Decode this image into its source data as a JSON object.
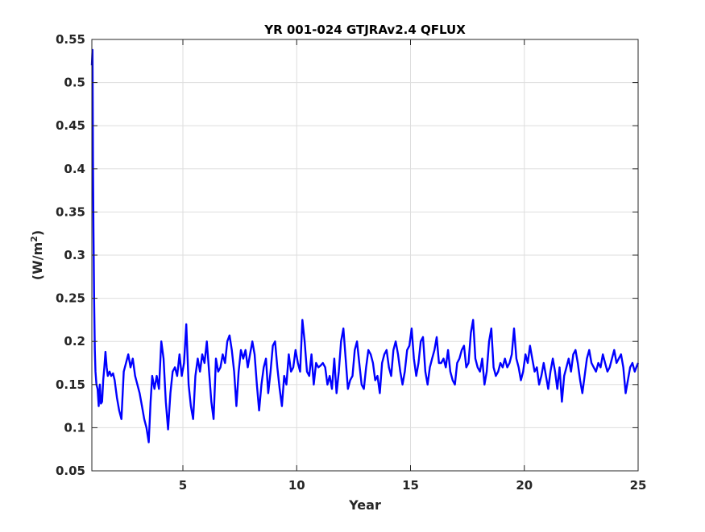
{
  "chart_data": {
    "type": "line",
    "title": "YR 001-024 GTJRAv2.4 QFLUX",
    "xlabel": "Year",
    "ylabel": "(W/m",
    "ylabel_sup": "2",
    "ylabel_close": ")",
    "xlim": [
      1,
      25
    ],
    "ylim": [
      0.05,
      0.55
    ],
    "x_ticks": [
      5,
      10,
      15,
      20,
      25
    ],
    "x_tick_labels": [
      "5",
      "10",
      "15",
      "20",
      "25"
    ],
    "y_ticks": [
      0.05,
      0.1,
      0.15,
      0.2,
      0.25,
      0.3,
      0.35,
      0.4,
      0.45,
      0.5,
      0.55
    ],
    "y_tick_labels": [
      "0.05",
      "0.1",
      "0.15",
      "0.2",
      "0.25",
      "0.3",
      "0.35",
      "0.4",
      "0.45",
      "0.5",
      "0.55"
    ],
    "grid": true,
    "legend": "none",
    "series": [
      {
        "color": "#0000ff",
        "x": [
          1.0,
          1.03,
          1.05,
          1.07,
          1.1,
          1.13,
          1.16,
          1.2,
          1.25,
          1.3,
          1.35,
          1.4,
          1.45,
          1.5,
          1.55,
          1.6,
          1.65,
          1.7,
          1.78,
          1.85,
          1.93,
          2.0,
          2.1,
          2.2,
          2.3,
          2.4,
          2.5,
          2.6,
          2.7,
          2.8,
          2.9,
          3.0,
          3.1,
          3.2,
          3.3,
          3.4,
          3.5,
          3.58,
          3.65,
          3.75,
          3.85,
          3.95,
          4.05,
          4.15,
          4.25,
          4.35,
          4.45,
          4.55,
          4.65,
          4.75,
          4.85,
          4.95,
          5.05,
          5.15,
          5.25,
          5.35,
          5.45,
          5.55,
          5.65,
          5.75,
          5.85,
          5.95,
          6.05,
          6.15,
          6.25,
          6.35,
          6.45,
          6.55,
          6.65,
          6.75,
          6.85,
          6.95,
          7.05,
          7.15,
          7.25,
          7.35,
          7.45,
          7.55,
          7.65,
          7.75,
          7.85,
          7.95,
          8.05,
          8.15,
          8.25,
          8.35,
          8.45,
          8.55,
          8.65,
          8.75,
          8.85,
          8.95,
          9.05,
          9.15,
          9.25,
          9.35,
          9.45,
          9.55,
          9.65,
          9.75,
          9.85,
          9.95,
          10.05,
          10.15,
          10.25,
          10.35,
          10.45,
          10.55,
          10.65,
          10.75,
          10.85,
          10.95,
          11.05,
          11.15,
          11.25,
          11.35,
          11.45,
          11.55,
          11.65,
          11.75,
          11.85,
          11.95,
          12.05,
          12.15,
          12.25,
          12.35,
          12.45,
          12.55,
          12.65,
          12.75,
          12.85,
          12.95,
          13.05,
          13.15,
          13.25,
          13.35,
          13.45,
          13.55,
          13.65,
          13.75,
          13.85,
          13.95,
          14.05,
          14.15,
          14.25,
          14.35,
          14.45,
          14.55,
          14.65,
          14.75,
          14.85,
          14.95,
          15.05,
          15.15,
          15.25,
          15.35,
          15.45,
          15.55,
          15.65,
          15.75,
          15.85,
          15.95,
          16.05,
          16.15,
          16.25,
          16.35,
          16.45,
          16.55,
          16.65,
          16.75,
          16.85,
          16.95,
          17.05,
          17.15,
          17.25,
          17.35,
          17.45,
          17.55,
          17.65,
          17.75,
          17.85,
          17.95,
          18.05,
          18.15,
          18.25,
          18.35,
          18.45,
          18.55,
          18.65,
          18.75,
          18.85,
          18.95,
          19.05,
          19.15,
          19.25,
          19.35,
          19.45,
          19.55,
          19.65,
          19.75,
          19.85,
          19.95,
          20.05,
          20.15,
          20.25,
          20.35,
          20.45,
          20.55,
          20.65,
          20.75,
          20.85,
          20.95,
          21.05,
          21.15,
          21.25,
          21.35,
          21.45,
          21.55,
          21.65,
          21.75,
          21.85,
          21.95,
          22.05,
          22.15,
          22.25,
          22.35,
          22.45,
          22.55,
          22.65,
          22.75,
          22.85,
          22.95,
          23.05,
          23.15,
          23.25,
          23.35,
          23.45,
          23.55,
          23.65,
          23.75,
          23.85,
          23.95,
          24.05,
          24.15,
          24.25,
          24.35,
          24.45,
          24.55,
          24.65,
          24.75,
          24.85,
          24.95,
          25.0
        ],
        "y": [
          0.52,
          0.538,
          0.41,
          0.33,
          0.25,
          0.19,
          0.165,
          0.15,
          0.145,
          0.125,
          0.15,
          0.128,
          0.13,
          0.155,
          0.17,
          0.188,
          0.17,
          0.16,
          0.165,
          0.16,
          0.163,
          0.155,
          0.135,
          0.12,
          0.11,
          0.165,
          0.175,
          0.185,
          0.17,
          0.18,
          0.16,
          0.15,
          0.14,
          0.125,
          0.11,
          0.1,
          0.083,
          0.13,
          0.16,
          0.145,
          0.16,
          0.145,
          0.2,
          0.18,
          0.13,
          0.098,
          0.14,
          0.165,
          0.17,
          0.16,
          0.185,
          0.16,
          0.175,
          0.22,
          0.15,
          0.125,
          0.11,
          0.16,
          0.18,
          0.165,
          0.185,
          0.175,
          0.2,
          0.165,
          0.13,
          0.11,
          0.18,
          0.165,
          0.17,
          0.185,
          0.175,
          0.2,
          0.207,
          0.19,
          0.165,
          0.125,
          0.165,
          0.19,
          0.18,
          0.19,
          0.17,
          0.185,
          0.2,
          0.185,
          0.15,
          0.12,
          0.15,
          0.17,
          0.18,
          0.14,
          0.165,
          0.195,
          0.2,
          0.17,
          0.145,
          0.125,
          0.16,
          0.15,
          0.185,
          0.165,
          0.17,
          0.19,
          0.175,
          0.165,
          0.225,
          0.2,
          0.165,
          0.16,
          0.185,
          0.15,
          0.175,
          0.17,
          0.172,
          0.175,
          0.17,
          0.15,
          0.16,
          0.145,
          0.18,
          0.14,
          0.165,
          0.2,
          0.215,
          0.18,
          0.145,
          0.155,
          0.16,
          0.19,
          0.2,
          0.175,
          0.15,
          0.145,
          0.17,
          0.19,
          0.185,
          0.175,
          0.155,
          0.16,
          0.14,
          0.175,
          0.185,
          0.19,
          0.17,
          0.16,
          0.19,
          0.2,
          0.185,
          0.165,
          0.15,
          0.165,
          0.19,
          0.195,
          0.215,
          0.18,
          0.16,
          0.175,
          0.2,
          0.205,
          0.165,
          0.15,
          0.17,
          0.18,
          0.19,
          0.205,
          0.175,
          0.175,
          0.18,
          0.17,
          0.19,
          0.165,
          0.155,
          0.15,
          0.175,
          0.18,
          0.19,
          0.195,
          0.17,
          0.175,
          0.21,
          0.225,
          0.18,
          0.17,
          0.165,
          0.18,
          0.15,
          0.165,
          0.2,
          0.215,
          0.17,
          0.16,
          0.165,
          0.175,
          0.17,
          0.18,
          0.17,
          0.175,
          0.185,
          0.215,
          0.18,
          0.17,
          0.155,
          0.165,
          0.185,
          0.175,
          0.195,
          0.18,
          0.165,
          0.17,
          0.15,
          0.16,
          0.175,
          0.16,
          0.145,
          0.165,
          0.18,
          0.165,
          0.145,
          0.17,
          0.13,
          0.16,
          0.17,
          0.18,
          0.165,
          0.185,
          0.19,
          0.175,
          0.155,
          0.14,
          0.16,
          0.18,
          0.19,
          0.175,
          0.17,
          0.165,
          0.175,
          0.17,
          0.185,
          0.175,
          0.165,
          0.17,
          0.18,
          0.19,
          0.175,
          0.18,
          0.185,
          0.17,
          0.14,
          0.155,
          0.17,
          0.175,
          0.165,
          0.172,
          0.175
        ]
      }
    ]
  }
}
